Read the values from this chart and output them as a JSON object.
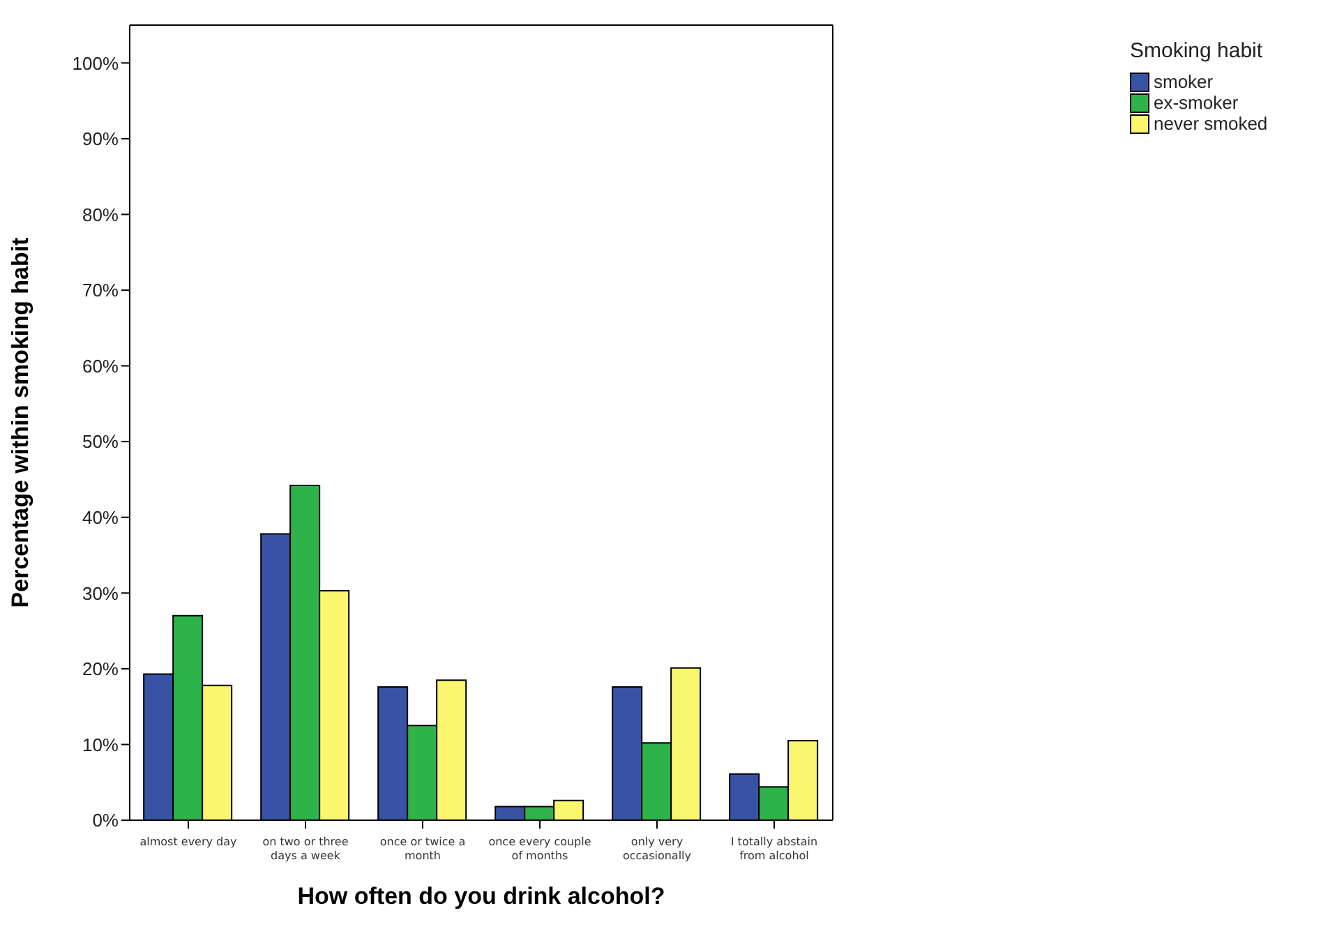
{
  "chart_data": {
    "type": "bar",
    "xlabel": "How often do you drink alcohol?",
    "ylabel": "Percentage within smoking habit",
    "legend_title": "Smoking habit",
    "categories": [
      "almost every day",
      "on two or three days a week",
      "once or twice a month",
      "once every couple of months",
      "only very occasionally",
      "I totally abstain from alcohol"
    ],
    "series": [
      {
        "name": "smoker",
        "color": "#3953a4",
        "values": [
          19.3,
          37.8,
          17.6,
          1.8,
          17.6,
          6.1
        ]
      },
      {
        "name": "ex-smoker",
        "color": "#2db34a",
        "values": [
          27,
          44.2,
          12.5,
          1.8,
          10.2,
          4.4
        ]
      },
      {
        "name": "never smoked",
        "color": "#faf66e",
        "values": [
          17.8,
          30.3,
          18.5,
          2.6,
          20.1,
          10.5
        ]
      }
    ],
    "ylim": [
      0,
      105
    ],
    "yticks": [
      {
        "value": 0,
        "label": "0%"
      },
      {
        "value": 10,
        "label": "10%"
      },
      {
        "value": 20,
        "label": "20%"
      },
      {
        "value": 30,
        "label": "30%"
      },
      {
        "value": 40,
        "label": "40%"
      },
      {
        "value": 50,
        "label": "50%"
      },
      {
        "value": 60,
        "label": "60%"
      },
      {
        "value": 70,
        "label": "70%"
      },
      {
        "value": 80,
        "label": "80%"
      },
      {
        "value": 90,
        "label": "90%"
      },
      {
        "value": 100,
        "label": "100%"
      }
    ],
    "grid": false,
    "legend": "top right"
  }
}
